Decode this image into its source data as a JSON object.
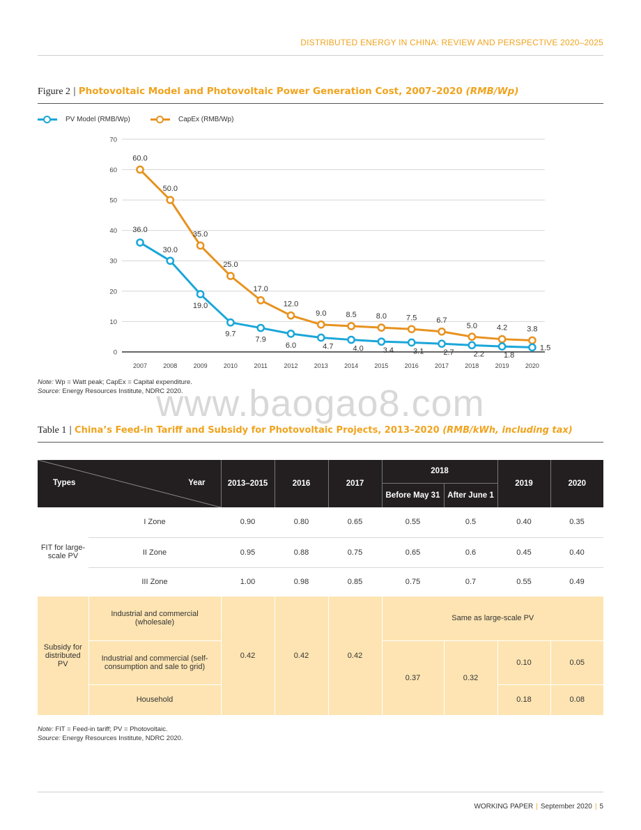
{
  "header": {
    "running_title": "DISTRIBUTED ENERGY IN CHINA: REVIEW AND PERSPECTIVE 2020–2025"
  },
  "figure": {
    "label": "Figure 2",
    "separator": "|",
    "title": "Photovoltaic Model and Photovoltaic Power Generation Cost, 2007–2020",
    "unit": "(RMB/Wp)",
    "note_label": "Note:",
    "note": "Wp = Watt peak; CapEx = Capital expenditure.",
    "source_label": "Source:",
    "source": "Energy Resources Institute, NDRC 2020."
  },
  "chart_data": {
    "type": "line",
    "title": "Photovoltaic Model and Photovoltaic Power Generation Cost, 2007–2020 (RMB/Wp)",
    "xlabel": "",
    "ylabel": "",
    "ylim": [
      0,
      70
    ],
    "yticks": [
      0,
      10,
      20,
      30,
      40,
      50,
      60,
      70
    ],
    "legend_position": "top-left",
    "grid": true,
    "categories": [
      "2007",
      "2008",
      "2009",
      "2010",
      "2011",
      "2012",
      "2013",
      "2014",
      "2015",
      "2016",
      "2017",
      "2018",
      "2019",
      "2020"
    ],
    "series": [
      {
        "name": "PV Model (RMB/Wp)",
        "color": "#1aa6d9",
        "values": [
          36.0,
          30.0,
          19.0,
          9.7,
          7.9,
          6.0,
          4.7,
          4.0,
          3.4,
          3.1,
          2.7,
          2.2,
          1.8,
          1.5
        ],
        "labels": [
          "36.0",
          "30.0",
          "19.0",
          "9.7",
          "7.9",
          "6.0",
          "4.7",
          "4.0",
          "3.4",
          "3.1",
          "2.7",
          "2.2",
          "1.8",
          "1.5"
        ]
      },
      {
        "name": "CapEx (RMB/Wp)",
        "color": "#e7921f",
        "values": [
          60.0,
          50.0,
          35.0,
          25.0,
          17.0,
          12.0,
          9.0,
          8.5,
          8.0,
          7.5,
          6.7,
          5.0,
          4.2,
          3.8
        ],
        "labels": [
          "60.0",
          "50.0",
          "35.0",
          "25.0",
          "17.0",
          "12.0",
          "9.0",
          "8.5",
          "8.0",
          "7.5",
          "6.7",
          "5.0",
          "4.2",
          "3.8"
        ]
      }
    ]
  },
  "watermark": "www.baogao8.com",
  "table": {
    "label": "Table 1",
    "separator": "|",
    "title": "China’s Feed-in Tariff and Subsidy for Photovoltaic Projects, 2013–2020",
    "unit": "(RMB/kWh, including tax)",
    "head": {
      "types": "Types",
      "year": "Year",
      "y2013": "2013–2015",
      "y2016": "2016",
      "y2017": "2017",
      "y2018": "2018",
      "before_may": "Before May 31",
      "after_june": "After June 1",
      "y2019": "2019",
      "y2020": "2020"
    },
    "fit": {
      "group": "FIT for large-scale PV",
      "rows": [
        {
          "zone": "I Zone",
          "v2013": "0.90",
          "v2016": "0.80",
          "v2017": "0.65",
          "before": "0.55",
          "after": "0.5",
          "v2019": "0.40",
          "v2020": "0.35"
        },
        {
          "zone": "II Zone",
          "v2013": "0.95",
          "v2016": "0.88",
          "v2017": "0.75",
          "before": "0.65",
          "after": "0.6",
          "v2019": "0.45",
          "v2020": "0.40"
        },
        {
          "zone": "III Zone",
          "v2013": "1.00",
          "v2016": "0.98",
          "v2017": "0.85",
          "before": "0.75",
          "after": "0.7",
          "v2019": "0.55",
          "v2020": "0.49"
        }
      ]
    },
    "subsidy": {
      "group": "Subsidy for distributed PV",
      "ic_wholesale": "Industrial and commercial (wholesale)",
      "same_as": "Same as large-scale PV",
      "ic_self": "Industrial and commercial (self-consumption and sale to grid)",
      "household": "Household",
      "v2013": "0.42",
      "v2016": "0.42",
      "v2017": "0.42",
      "before": "0.37",
      "after": "0.32",
      "ic_2019": "0.10",
      "ic_2020": "0.05",
      "hh_2019": "0.18",
      "hh_2020": "0.08"
    },
    "note_label": "Note:",
    "note": "FIT = Feed-in tariff; PV = Photovoltaic.",
    "source_label": "Source:",
    "source": "Energy Resources Institute, NDRC 2020."
  },
  "footer": {
    "series": "WORKING PAPER",
    "sep": "|",
    "date": "September 2020",
    "page": "5"
  }
}
